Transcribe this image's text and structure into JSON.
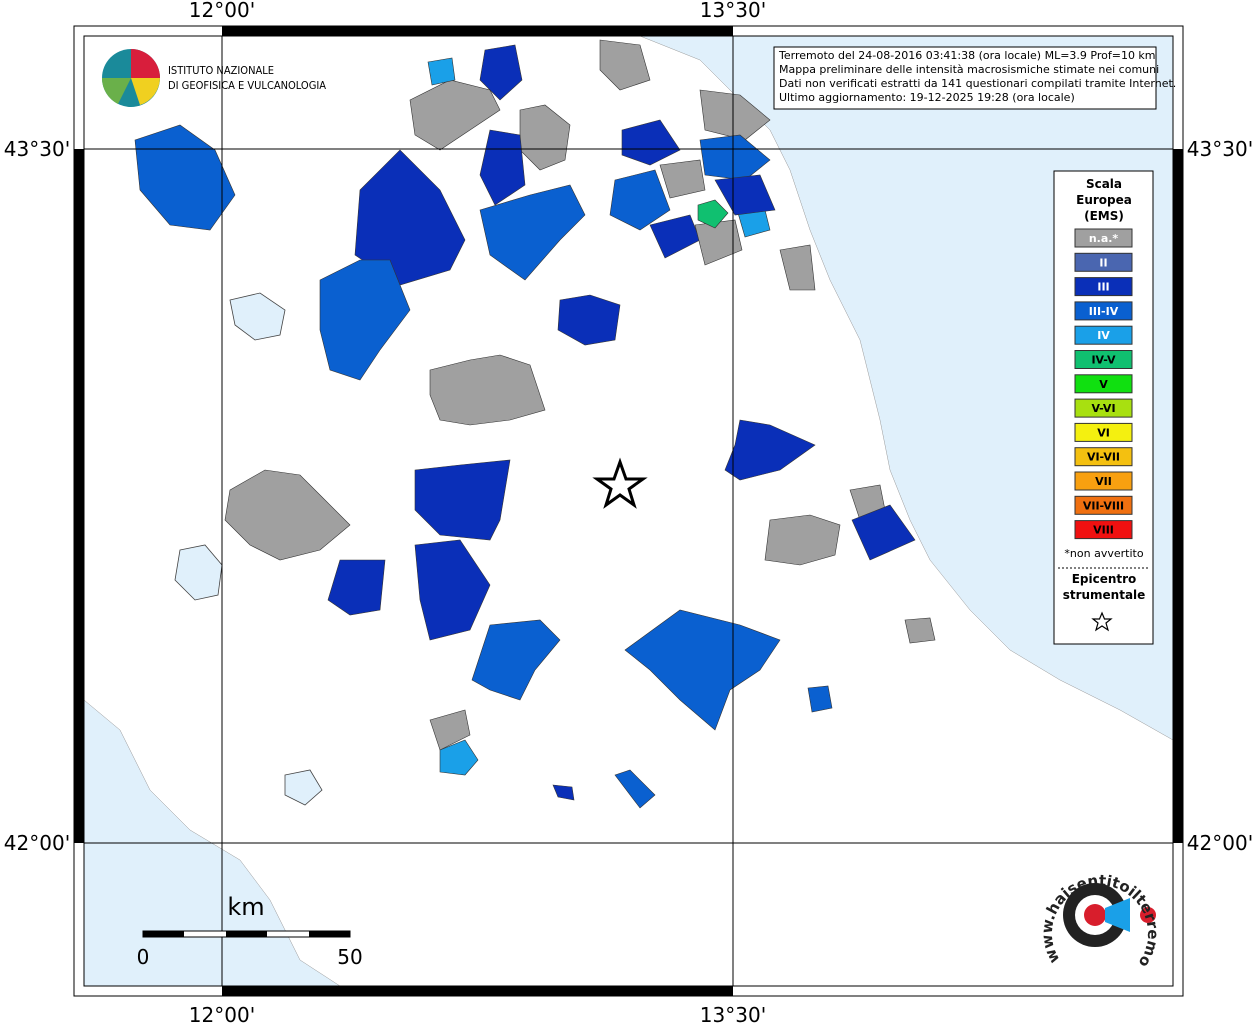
{
  "map": {
    "lon_labels": [
      "12°00'",
      "13°30'"
    ],
    "lat_labels": [
      "43°30'",
      "42°00'"
    ]
  },
  "info": [
    "Terremoto del 24-08-2016 03:41:38 (ora locale) ML=3.9 Prof=10 km",
    "Mappa preliminare delle intensità macrosismiche stimate nei comuni",
    "Dati non verificati estratti da 141 questionari compilati tramite Internet.",
    "Ultimo aggiornamento: 19-12-2025 19:28 (ora locale)"
  ],
  "legend": {
    "title": [
      "Scala",
      "Europea",
      "(EMS)"
    ],
    "items": [
      {
        "label": "n.a.*",
        "color": "#a0a0a0"
      },
      {
        "label": "II",
        "color": "#4a66b0"
      },
      {
        "label": "III",
        "color": "#0a2fb8"
      },
      {
        "label": "III-IV",
        "color": "#0a60d0"
      },
      {
        "label": "IV",
        "color": "#1aa0e8"
      },
      {
        "label": "IV-V",
        "color": "#10c070"
      },
      {
        "label": "V",
        "color": "#10e010"
      },
      {
        "label": "V-VI",
        "color": "#a8e010"
      },
      {
        "label": "VI",
        "color": "#f4f010"
      },
      {
        "label": "VI-VII",
        "color": "#f4c010"
      },
      {
        "label": "VII",
        "color": "#f8a010"
      },
      {
        "label": "VII-VIII",
        "color": "#f07010"
      },
      {
        "label": "VIII",
        "color": "#f01010"
      }
    ],
    "note": "*non avvertito",
    "epicenter": [
      "Epicentro",
      "strumentale"
    ]
  },
  "scale": {
    "unit": "km",
    "ticks": [
      "0",
      "50"
    ]
  },
  "logo": [
    "ISTITUTO NAZIONALE",
    "DI GEOFISICA E VULCANOLOGIA"
  ],
  "badge": "www.haisentitoilterremoto.it"
}
